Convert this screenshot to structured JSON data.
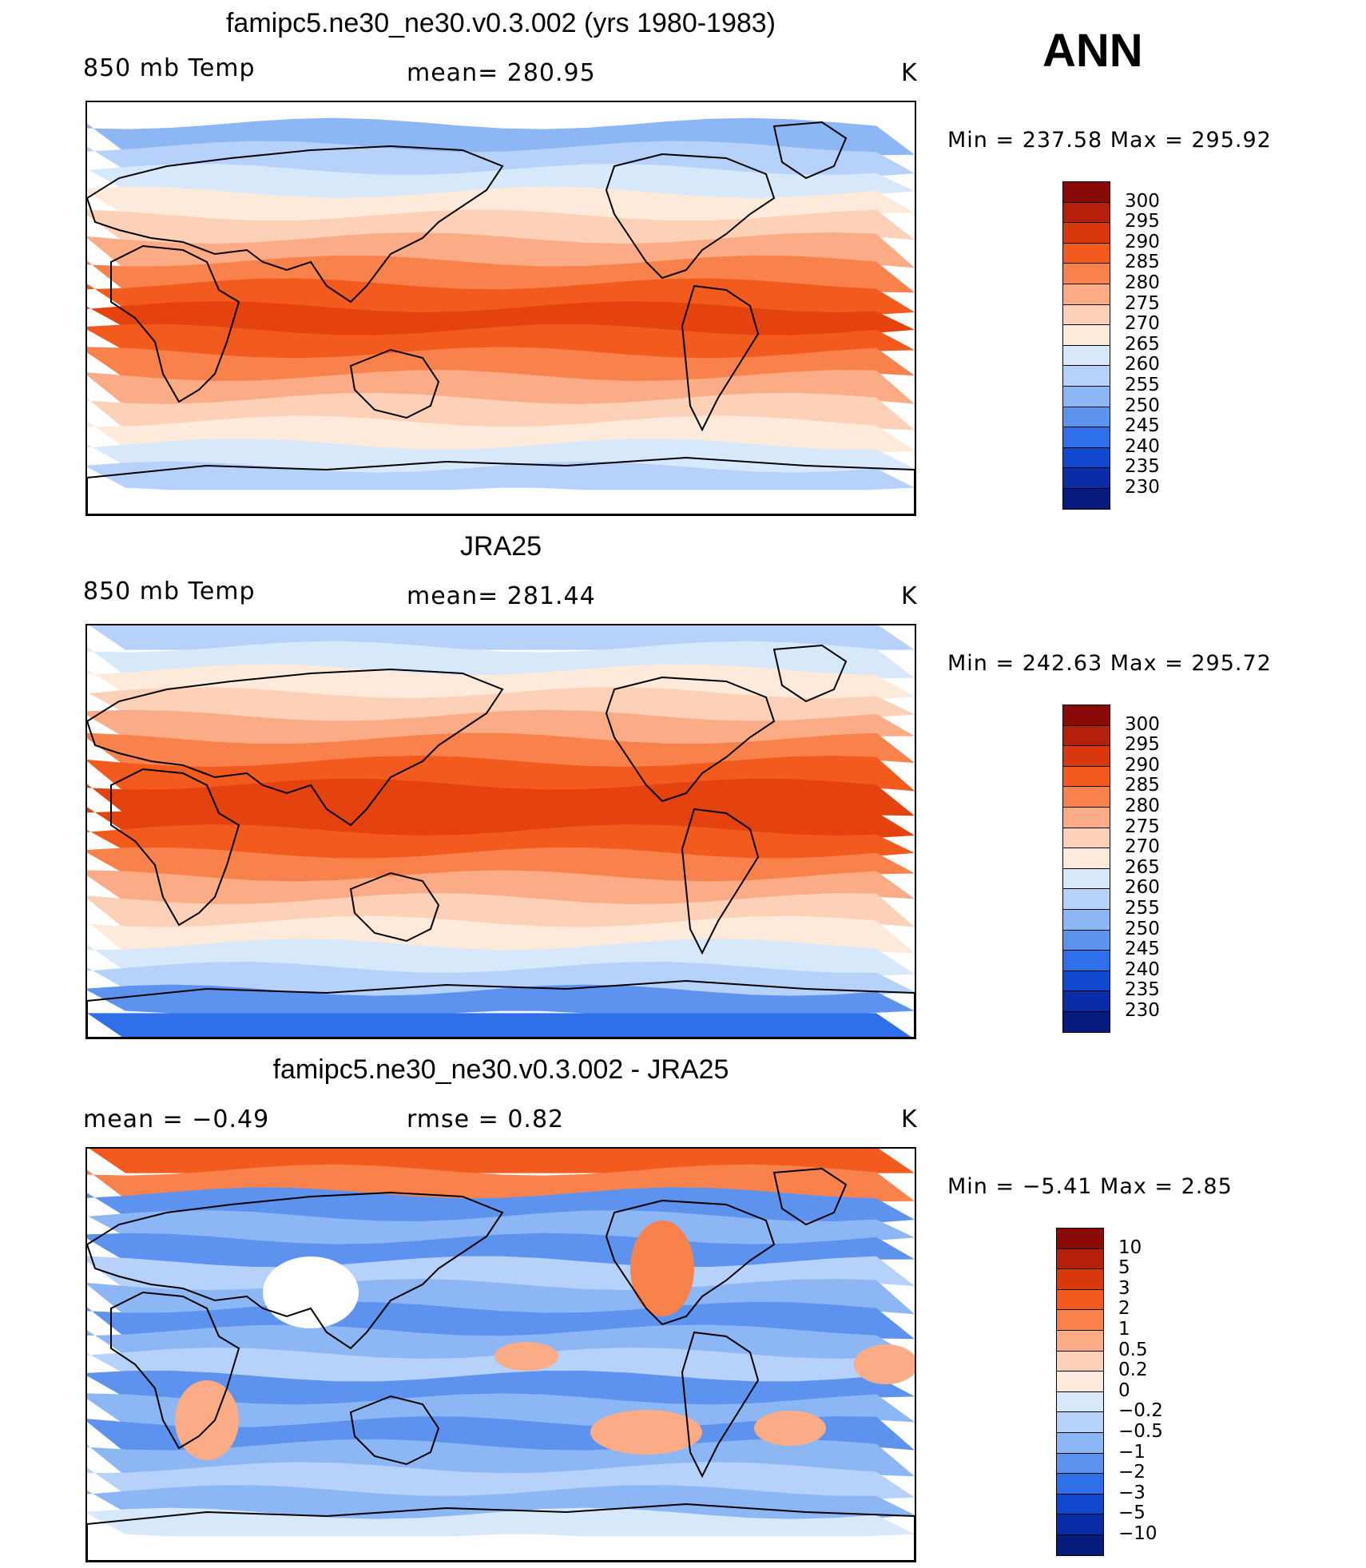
{
  "season": "ANN",
  "panels": [
    {
      "id": "model",
      "title": "famipc5.ne30_ne30.v0.3.002 (yrs 1980-1983)",
      "left_label": "850 mb Temp",
      "center_label": "mean=  280.95",
      "units": "K",
      "min_max": "Min  =  237.58  Max  =  295.92",
      "colorbar": {
        "labels": [
          "300",
          "295",
          "290",
          "285",
          "280",
          "275",
          "270",
          "265",
          "260",
          "255",
          "250",
          "245",
          "240",
          "235",
          "230"
        ],
        "colors": [
          "#8a0a07",
          "#b5200c",
          "#d9380d",
          "#f25a1e",
          "#f8814c",
          "#fbab86",
          "#fcd1b8",
          "#fdeadb",
          "#d7e8fb",
          "#b6d1fa",
          "#8db6f5",
          "#5d93ef",
          "#2f6fe9",
          "#1049d0",
          "#0a2ca6",
          "#071a7e"
        ]
      },
      "map": {
        "band_colors": [
          "#ffffff",
          "#8db6f5",
          "#b6d1fa",
          "#d7e8fb",
          "#fdeadb",
          "#fcd1b8",
          "#fbab86",
          "#f8814c",
          "#f25a1e",
          "#e4420f",
          "#f25a1e",
          "#f8814c",
          "#fbab86",
          "#fcd1b8",
          "#fdeadb",
          "#d7e8fb",
          "#b6d1fa",
          "#ffffff"
        ]
      }
    },
    {
      "id": "obs",
      "title": "JRA25",
      "left_label": "850 mb Temp",
      "center_label": "mean=  281.44",
      "units": "K",
      "min_max": "Min  =  242.63  Max  =  295.72",
      "colorbar": {
        "labels": [
          "300",
          "295",
          "290",
          "285",
          "280",
          "275",
          "270",
          "265",
          "260",
          "255",
          "250",
          "245",
          "240",
          "235",
          "230"
        ],
        "colors": [
          "#8a0a07",
          "#b5200c",
          "#d9380d",
          "#f25a1e",
          "#f8814c",
          "#fbab86",
          "#fcd1b8",
          "#fdeadb",
          "#d7e8fb",
          "#b6d1fa",
          "#8db6f5",
          "#5d93ef",
          "#2f6fe9",
          "#1049d0",
          "#0a2ca6",
          "#071a7e"
        ]
      },
      "map": {
        "band_colors": [
          "#b6d1fa",
          "#d7e8fb",
          "#fdeadb",
          "#fcd1b8",
          "#fbab86",
          "#f8814c",
          "#f25a1e",
          "#e4420f",
          "#e4420f",
          "#f25a1e",
          "#f8814c",
          "#fbab86",
          "#fcd1b8",
          "#fdeadb",
          "#d7e8fb",
          "#b6d1fa",
          "#5d93ef",
          "#2f6fe9"
        ]
      }
    },
    {
      "id": "diff",
      "title": "famipc5.ne30_ne30.v0.3.002 - JRA25",
      "left_label": "mean =    −0.49",
      "center_label": "rmse =     0.82",
      "units": "K",
      "min_max": "Min  =   −5.41  Max  =     2.85",
      "colorbar": {
        "labels": [
          "10",
          "5",
          "3",
          "2",
          "1",
          "0.5",
          "0.2",
          "0",
          "−0.2",
          "−0.5",
          "−1",
          "−2",
          "−3",
          "−5",
          "−10"
        ],
        "colors": [
          "#8a0a07",
          "#b5200c",
          "#d9380d",
          "#f25a1e",
          "#f8814c",
          "#fbab86",
          "#fcd1b8",
          "#fdeadb",
          "#d7e8fb",
          "#b6d1fa",
          "#8db6f5",
          "#5d93ef",
          "#2f6fe9",
          "#1049d0",
          "#0a2ca6",
          "#071a7e"
        ]
      },
      "map": {
        "band_colors": [
          "#f25a1e",
          "#f8814c",
          "#5d93ef",
          "#8db6f5",
          "#5d93ef",
          "#b6d1fa",
          "#8db6f5",
          "#5d93ef",
          "#8db6f5",
          "#b6d1fa",
          "#5d93ef",
          "#8db6f5",
          "#5d93ef",
          "#8db6f5",
          "#b6d1fa",
          "#8db6f5",
          "#d7e8fb",
          "#ffffff"
        ]
      }
    }
  ]
}
